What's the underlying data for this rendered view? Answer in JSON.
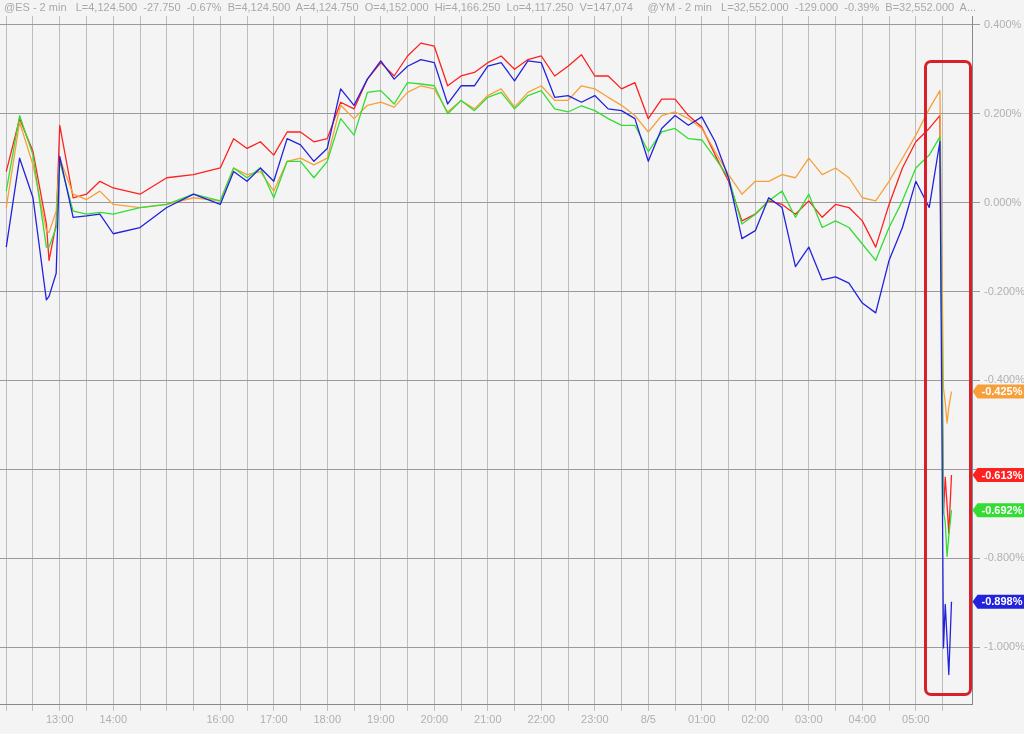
{
  "chart_data": {
    "type": "line",
    "annotations": [
      "@ES - 2 min   L=4,124.500  -27.750  -0.67%  B=4,124.500  A=4,124.750  O=4,152.000  Hi=4,166.250  Lo=4,117.250  V=147,074",
      "@YM - 2 min   L=32,552.000  -129.000  -0.39%  B=32,552.000  A...",
      {
        "text": "-0.613%",
        "x": "--08-05T05:40",
        "y": -0.613
      },
      {
        "text": "-0.425%",
        "x": "--08-05T05:40",
        "y": -0.425
      },
      {
        "text": "-0.692%",
        "x": "--08-05T05:40",
        "y": -0.692
      },
      {
        "text": "-0.898%",
        "x": "--08-05T05:40",
        "y": -0.898
      }
    ],
    "x": [
      "--08-04T12:00",
      "--08-04T12:15",
      "--08-04T12:30",
      "--08-04T12:45",
      "--08-04T12:48",
      "--08-04T12:56",
      "--08-04T13:00",
      "--08-04T13:15",
      "--08-04T13:30",
      "--08-04T13:45",
      "--08-04T14:00",
      "--08-04T14:30",
      "--08-04T15:00",
      "--08-04T15:30",
      "--08-04T16:00",
      "--08-04T16:15",
      "--08-04T16:30",
      "--08-04T16:45",
      "--08-04T17:00",
      "--08-04T17:15",
      "--08-04T17:30",
      "--08-04T17:45",
      "--08-04T18:00",
      "--08-04T18:15",
      "--08-04T18:30",
      "--08-04T18:45",
      "--08-04T19:00",
      "--08-04T19:15",
      "--08-04T19:30",
      "--08-04T19:45",
      "--08-04T20:00",
      "--08-04T20:15",
      "--08-04T20:30",
      "--08-04T20:45",
      "--08-04T21:00",
      "--08-04T21:15",
      "--08-04T21:30",
      "--08-04T21:45",
      "--08-04T22:00",
      "--08-04T22:15",
      "--08-04T22:30",
      "--08-04T22:45",
      "--08-04T23:00",
      "--08-04T23:15",
      "--08-04T23:30",
      "--08-04T23:45",
      "--08-05T00:00",
      "--08-05T00:15",
      "--08-05T00:30",
      "--08-05T00:45",
      "--08-05T01:00",
      "--08-05T01:15",
      "--08-05T01:30",
      "--08-05T01:45",
      "--08-05T02:00",
      "--08-05T02:15",
      "--08-05T02:30",
      "--08-05T02:45",
      "--08-05T03:00",
      "--08-05T03:15",
      "--08-05T03:30",
      "--08-05T03:45",
      "--08-05T04:00",
      "--08-05T04:15",
      "--08-05T04:30",
      "--08-05T04:45",
      "--08-05T05:00",
      "--08-05T05:15",
      "--08-05T05:27",
      "--08-05T05:31",
      "--08-05T05:33",
      "--08-05T05:35",
      "--08-05T05:37",
      "--08-05T05:40"
    ],
    "series": [
      {
        "color": "#ff2020",
        "values": [
          0.07,
          0.189,
          0.115,
          -0.048,
          -0.13,
          -0.048,
          0.174,
          0.011,
          0.019,
          0.048,
          0.033,
          0.019,
          0.056,
          0.063,
          0.078,
          0.144,
          0.122,
          0.137,
          0.107,
          0.159,
          0.159,
          0.137,
          0.144,
          0.226,
          0.211,
          0.278,
          0.315,
          0.285,
          0.33,
          0.359,
          0.352,
          0.263,
          0.285,
          0.293,
          0.315,
          0.33,
          0.3,
          0.322,
          0.33,
          0.285,
          0.307,
          0.333,
          0.285,
          0.285,
          0.256,
          0.27,
          0.189,
          0.233,
          0.233,
          0.196,
          0.17,
          0.107,
          0.048,
          -0.041,
          -0.026,
          0.004,
          -0.004,
          -0.026,
          0.004,
          -0.033,
          -0.004,
          -0.011,
          -0.041,
          -0.1,
          -0.004,
          0.078,
          0.137,
          0.167,
          0.196,
          -0.7,
          -0.618,
          -0.68,
          -0.744,
          -0.613
        ]
      },
      {
        "color": "#f7a03a",
        "values": [
          -0.011,
          0.181,
          0.085,
          -0.063,
          -0.067,
          -0.019,
          0.1,
          0.019,
          0.007,
          0.026,
          -0.004,
          -0.011,
          -0.004,
          0.011,
          0.004,
          0.078,
          0.063,
          0.07,
          0.026,
          0.093,
          0.1,
          0.085,
          0.1,
          0.219,
          0.189,
          0.219,
          0.226,
          0.215,
          0.248,
          0.263,
          0.256,
          0.204,
          0.23,
          0.211,
          0.241,
          0.256,
          0.215,
          0.248,
          0.263,
          0.23,
          0.23,
          0.263,
          0.256,
          0.237,
          0.219,
          0.196,
          0.159,
          0.196,
          0.204,
          0.189,
          0.167,
          0.115,
          0.063,
          0.019,
          0.048,
          0.048,
          0.063,
          0.056,
          0.1,
          0.063,
          0.078,
          0.056,
          0.011,
          0.004,
          0.048,
          0.1,
          0.152,
          0.211,
          0.252,
          -0.418,
          -0.45,
          -0.496,
          -0.46,
          -0.425
        ]
      },
      {
        "color": "#33dd33",
        "values": [
          0.026,
          0.196,
          0.107,
          -0.1,
          -0.1,
          -0.056,
          0.093,
          -0.019,
          -0.026,
          -0.022,
          -0.026,
          -0.011,
          -0.004,
          0.019,
          0.004,
          0.078,
          0.056,
          0.078,
          0.011,
          0.093,
          0.093,
          0.056,
          0.093,
          0.189,
          0.152,
          0.248,
          0.252,
          0.222,
          0.27,
          0.267,
          0.263,
          0.2,
          0.23,
          0.207,
          0.237,
          0.248,
          0.211,
          0.241,
          0.252,
          0.211,
          0.204,
          0.218,
          0.207,
          0.189,
          0.174,
          0.174,
          0.115,
          0.159,
          0.167,
          0.144,
          0.141,
          0.1,
          0.056,
          -0.048,
          -0.026,
          0.004,
          0.026,
          -0.033,
          0.019,
          -0.056,
          -0.041,
          -0.056,
          -0.093,
          -0.13,
          -0.056,
          0.004,
          0.078,
          0.107,
          0.148,
          -0.693,
          -0.72,
          -0.796,
          -0.75,
          -0.692
        ]
      },
      {
        "color": "#2222dd",
        "values": [
          -0.1,
          0.1,
          0.011,
          -0.219,
          -0.211,
          -0.159,
          0.104,
          -0.033,
          -0.03,
          -0.026,
          -0.07,
          -0.056,
          -0.011,
          0.019,
          -0.004,
          0.07,
          0.048,
          0.078,
          0.048,
          0.144,
          0.13,
          0.093,
          0.122,
          0.256,
          0.219,
          0.278,
          0.319,
          0.278,
          0.307,
          0.322,
          0.315,
          0.222,
          0.263,
          0.263,
          0.307,
          0.315,
          0.274,
          0.319,
          0.315,
          0.237,
          0.241,
          0.226,
          0.241,
          0.211,
          0.207,
          0.189,
          0.093,
          0.167,
          0.196,
          0.174,
          0.193,
          0.137,
          0.056,
          -0.081,
          -0.063,
          0.011,
          -0.011,
          -0.144,
          -0.1,
          -0.174,
          -0.167,
          -0.181,
          -0.226,
          -0.248,
          -0.13,
          -0.056,
          0.048,
          -0.011,
          0.137,
          -1.002,
          -0.904,
          -0.98,
          -1.062,
          -0.898
        ]
      }
    ],
    "xlim": [
      "--08-04T11:53",
      "--08-05T06:03"
    ],
    "xticks": [
      {
        "value": "--08-04T12:00",
        "label": null
      },
      {
        "value": "--08-04T12:30",
        "label": null
      },
      {
        "value": "--08-04T13:00",
        "label": "13:00"
      },
      {
        "value": "--08-04T13:30",
        "label": null
      },
      {
        "value": "--08-04T14:00",
        "label": "14:00"
      },
      {
        "value": "--08-04T14:30",
        "label": null
      },
      {
        "value": "--08-04T15:00",
        "label": null
      },
      {
        "value": "--08-04T15:30",
        "label": null
      },
      {
        "value": "--08-04T16:00",
        "label": "16:00"
      },
      {
        "value": "--08-04T16:30",
        "label": null
      },
      {
        "value": "--08-04T17:00",
        "label": "17:00"
      },
      {
        "value": "--08-04T17:30",
        "label": null
      },
      {
        "value": "--08-04T18:00",
        "label": "18:00"
      },
      {
        "value": "--08-04T18:30",
        "label": null
      },
      {
        "value": "--08-04T19:00",
        "label": "19:00"
      },
      {
        "value": "--08-04T19:30",
        "label": null
      },
      {
        "value": "--08-04T20:00",
        "label": "20:00"
      },
      {
        "value": "--08-04T20:30",
        "label": null
      },
      {
        "value": "--08-04T21:00",
        "label": "21:00"
      },
      {
        "value": "--08-04T21:30",
        "label": null
      },
      {
        "value": "--08-04T22:00",
        "label": "22:00"
      },
      {
        "value": "--08-04T22:30",
        "label": null
      },
      {
        "value": "--08-04T23:00",
        "label": "23:00"
      },
      {
        "value": "--08-04T23:30",
        "label": null
      },
      {
        "value": "--08-05T00:00",
        "label": "8/5"
      },
      {
        "value": "--08-05T00:30",
        "label": null
      },
      {
        "value": "--08-05T01:00",
        "label": "01:00"
      },
      {
        "value": "--08-05T01:30",
        "label": null
      },
      {
        "value": "--08-05T02:00",
        "label": "02:00"
      },
      {
        "value": "--08-05T02:30",
        "label": null
      },
      {
        "value": "--08-05T03:00",
        "label": "03:00"
      },
      {
        "value": "--08-05T03:30",
        "label": null
      },
      {
        "value": "--08-05T04:00",
        "label": "04:00"
      },
      {
        "value": "--08-05T04:30",
        "label": null
      },
      {
        "value": "--08-05T05:00",
        "label": "05:00"
      },
      {
        "value": "--08-05T05:30",
        "label": null
      }
    ],
    "ylim": [
      -1.13,
      0.42
    ],
    "yticks": [
      {
        "value": 0.4,
        "label": "0.400%"
      },
      {
        "value": 0.2,
        "label": "0.200%"
      },
      {
        "value": 0,
        "label": "0.000%"
      },
      {
        "value": -0.2,
        "label": "-0.200%"
      },
      {
        "value": -0.4,
        "label": "-0.400%"
      },
      {
        "value": -0.6,
        "label": null
      },
      {
        "value": -0.8,
        "label": "-0.800%"
      },
      {
        "value": -1,
        "label": "-1.000%"
      }
    ],
    "grid": true,
    "legend": false,
    "marker": "none",
    "line_style": "solid"
  }
}
